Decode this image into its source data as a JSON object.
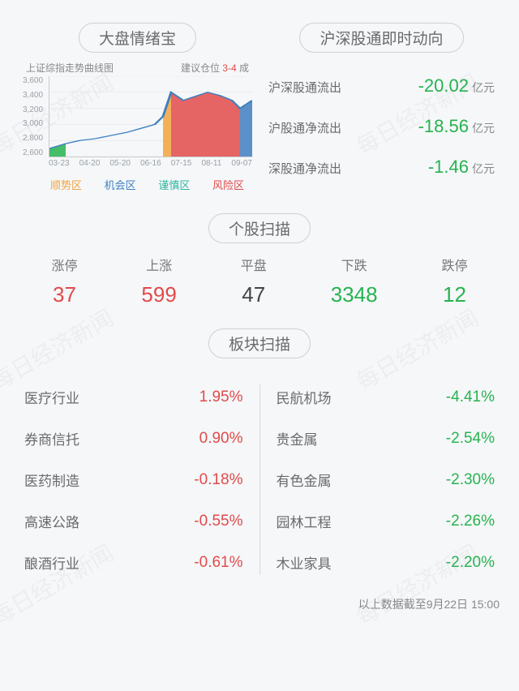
{
  "colors": {
    "up": "#e24a4a",
    "down": "#27b34f",
    "neutral": "#444444",
    "blue": "#3f7fbf",
    "orange": "#f2a33c",
    "teal": "#2fb5a0"
  },
  "sentiment": {
    "title": "大盘情绪宝",
    "chart_title": "上证综指走势曲线图",
    "position_label": "建议仓位",
    "position_range": "3-4",
    "position_unit": "成",
    "y_ticks": [
      "3,600",
      "3,400",
      "3,200",
      "3,000",
      "2,800",
      "2,600"
    ],
    "x_ticks": [
      "03-23",
      "04-20",
      "05-20",
      "06-16",
      "07-15",
      "08-11",
      "09-07"
    ],
    "y_min": 2600,
    "y_max": 3600,
    "legend": {
      "trend": "顺势区",
      "opportunity": "机会区",
      "caution": "谨慎区",
      "risk": "风险区"
    },
    "line_color": "#3f7fbf",
    "zones": [
      {
        "start": 0.0,
        "end": 0.08,
        "color": "#27b34f"
      },
      {
        "start": 0.55,
        "end": 0.62,
        "color": "#f2a33c"
      },
      {
        "start": 0.62,
        "end": 0.66,
        "color": "#e24a4a"
      },
      {
        "start": 0.66,
        "end": 0.92,
        "color": "#e24a4a"
      },
      {
        "start": 0.96,
        "end": 1.0,
        "color": "#3f7fbf"
      }
    ],
    "series": [
      {
        "x": 0.0,
        "y": 2700
      },
      {
        "x": 0.08,
        "y": 2760
      },
      {
        "x": 0.15,
        "y": 2800
      },
      {
        "x": 0.22,
        "y": 2820
      },
      {
        "x": 0.3,
        "y": 2860
      },
      {
        "x": 0.38,
        "y": 2900
      },
      {
        "x": 0.45,
        "y": 2950
      },
      {
        "x": 0.52,
        "y": 3000
      },
      {
        "x": 0.56,
        "y": 3100
      },
      {
        "x": 0.6,
        "y": 3400
      },
      {
        "x": 0.66,
        "y": 3300
      },
      {
        "x": 0.72,
        "y": 3350
      },
      {
        "x": 0.78,
        "y": 3400
      },
      {
        "x": 0.84,
        "y": 3360
      },
      {
        "x": 0.9,
        "y": 3300
      },
      {
        "x": 0.94,
        "y": 3200
      },
      {
        "x": 1.0,
        "y": 3300
      }
    ]
  },
  "flow": {
    "title": "沪深股通即时动向",
    "rows": [
      {
        "label": "沪深股通流出",
        "value": "-20.02",
        "unit": "亿元",
        "dir": "down"
      },
      {
        "label": "沪股通净流出",
        "value": "-18.56",
        "unit": "亿元",
        "dir": "down"
      },
      {
        "label": "深股通净流出",
        "value": "-1.46",
        "unit": "亿元",
        "dir": "down"
      }
    ]
  },
  "stock_scan": {
    "title": "个股扫描",
    "stats": [
      {
        "label": "涨停",
        "value": "37",
        "dir": "up"
      },
      {
        "label": "上涨",
        "value": "599",
        "dir": "up"
      },
      {
        "label": "平盘",
        "value": "47",
        "dir": "neutral"
      },
      {
        "label": "下跌",
        "value": "3348",
        "dir": "down"
      },
      {
        "label": "跌停",
        "value": "12",
        "dir": "down"
      }
    ]
  },
  "sector_scan": {
    "title": "板块扫描",
    "left": [
      {
        "name": "医疗行业",
        "pct": "1.95%",
        "dir": "up"
      },
      {
        "name": "券商信托",
        "pct": "0.90%",
        "dir": "up"
      },
      {
        "name": "医药制造",
        "pct": "-0.18%",
        "dir": "up_neg"
      },
      {
        "name": "高速公路",
        "pct": "-0.55%",
        "dir": "up_neg"
      },
      {
        "name": "酿酒行业",
        "pct": "-0.61%",
        "dir": "up_neg"
      }
    ],
    "right": [
      {
        "name": "民航机场",
        "pct": "-4.41%",
        "dir": "down"
      },
      {
        "name": "贵金属",
        "pct": "-2.54%",
        "dir": "down"
      },
      {
        "name": "有色金属",
        "pct": "-2.30%",
        "dir": "down"
      },
      {
        "name": "园林工程",
        "pct": "-2.26%",
        "dir": "down"
      },
      {
        "name": "木业家具",
        "pct": "-2.20%",
        "dir": "down"
      }
    ]
  },
  "footer": "以上数据截至9月22日 15:00",
  "watermark_text": "每日经济新闻"
}
